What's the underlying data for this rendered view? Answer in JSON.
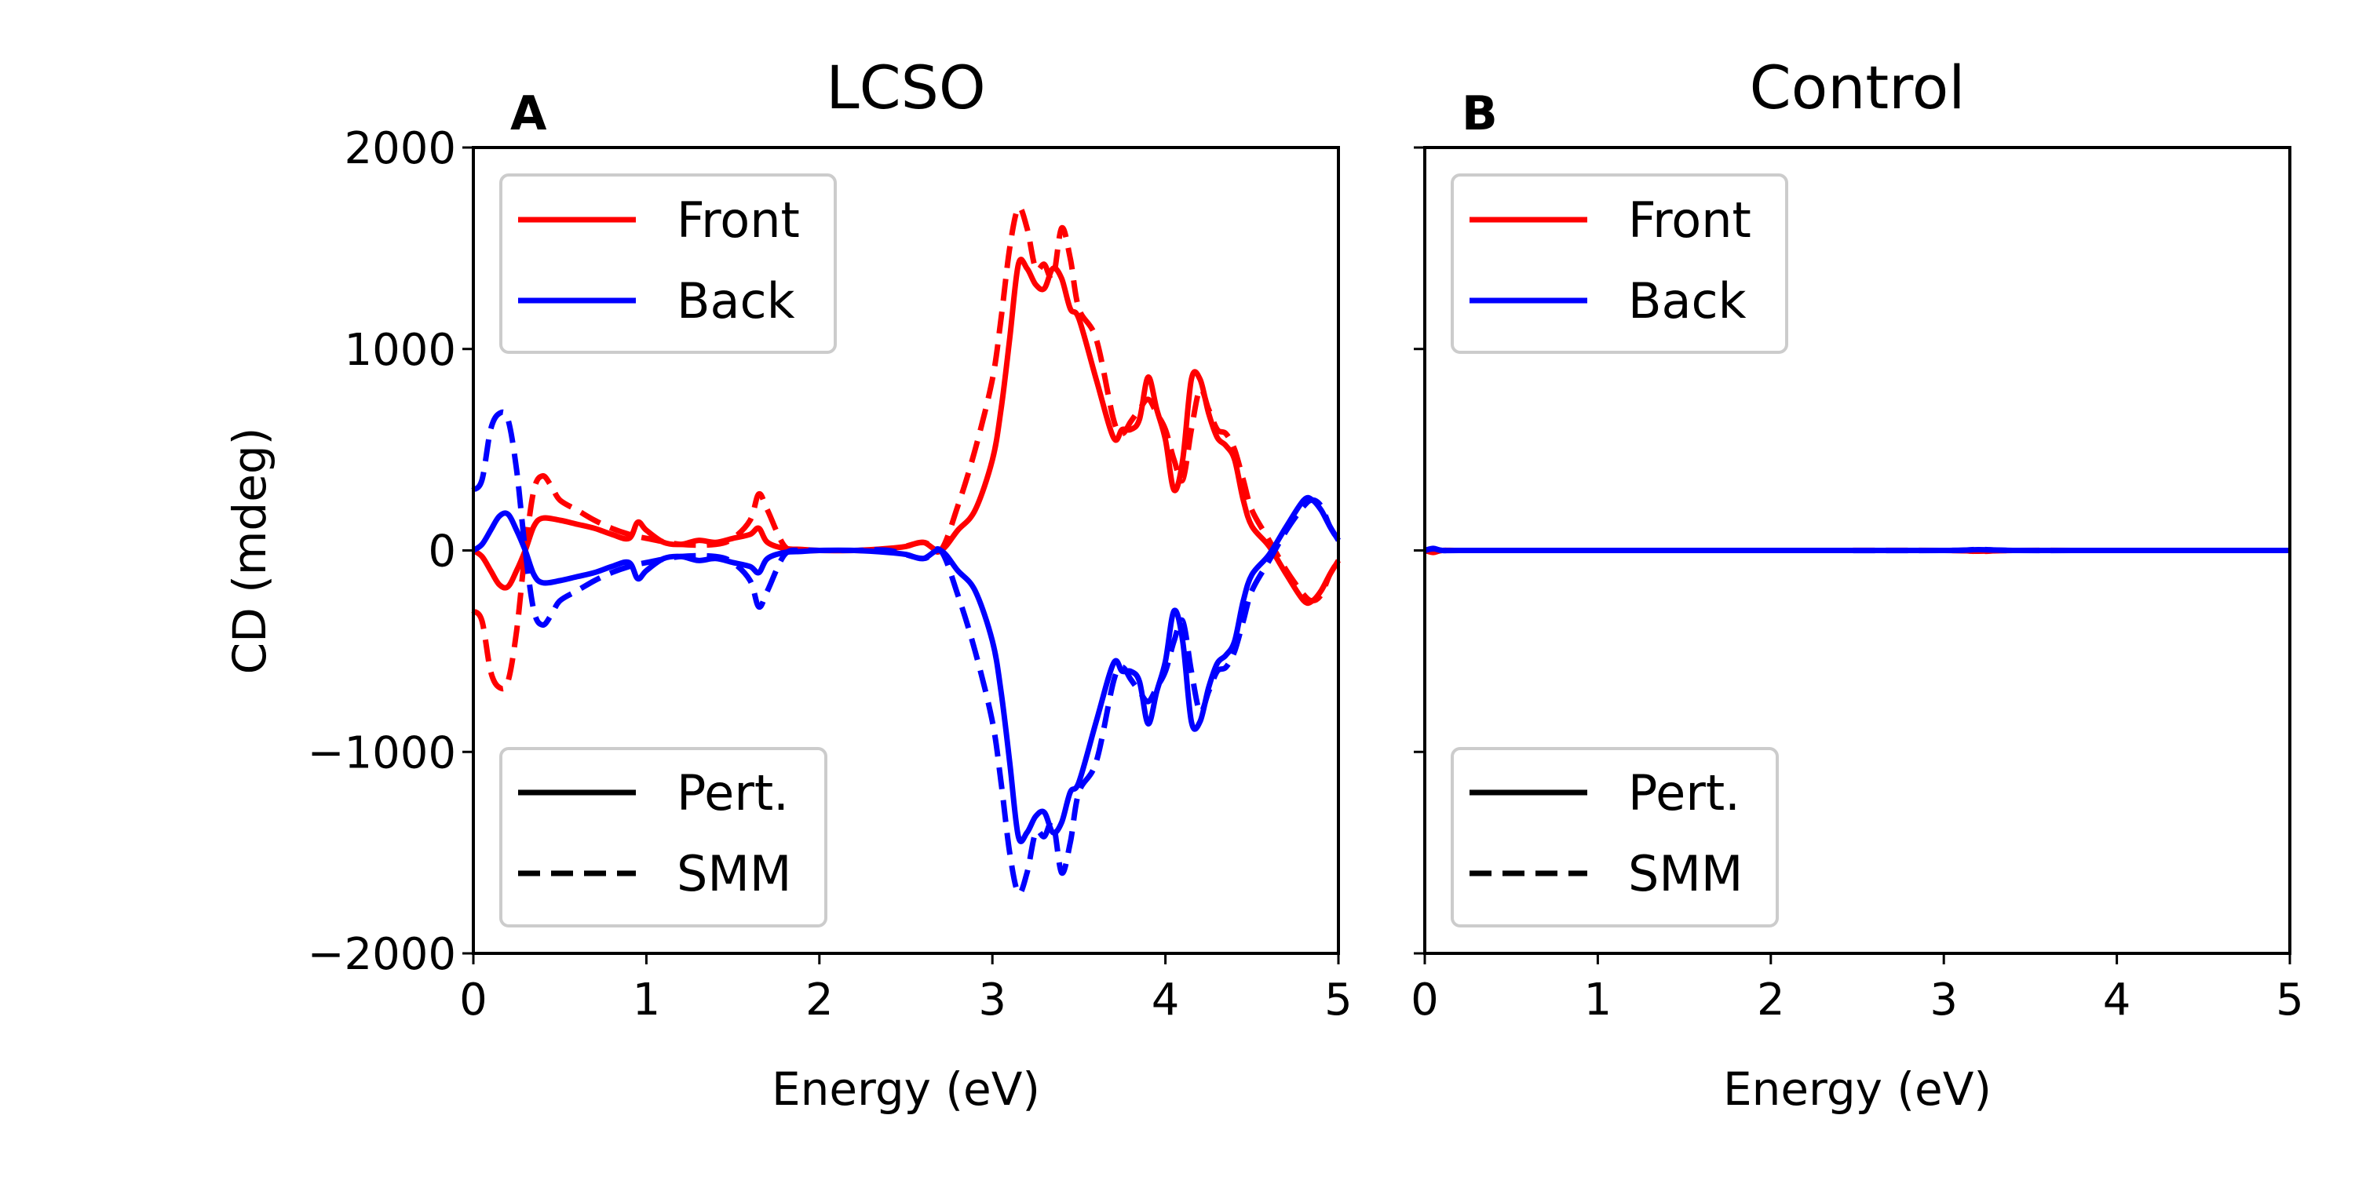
{
  "chart_data": [
    {
      "type": "line",
      "panel_label": "A",
      "title": "LCSO",
      "xlabel": "Energy (eV)",
      "ylabel": "CD (mdeg)",
      "xlim": [
        0,
        5
      ],
      "ylim": [
        -2000,
        2000
      ],
      "xticks": [
        "0",
        "1",
        "2",
        "3",
        "4",
        "5"
      ],
      "yticks": [
        "2000",
        "1000",
        "0",
        "−1000",
        "−2000"
      ],
      "grid": false,
      "legends": [
        {
          "placement": "top-left",
          "entries": [
            {
              "label": "Front",
              "color": "#ff0000",
              "style": "solid"
            },
            {
              "label": "Back",
              "color": "#0000ff",
              "style": "solid"
            }
          ]
        },
        {
          "placement": "bottom-left",
          "entries": [
            {
              "label": "Pert.",
              "color": "#000000",
              "style": "solid"
            },
            {
              "label": "SMM",
              "color": "#000000",
              "style": "dashed"
            }
          ]
        }
      ],
      "series": [
        {
          "name": "Front",
          "method": "Pert.",
          "color": "#ff0000",
          "dash": "solid",
          "x": [
            0,
            0.05,
            0.1,
            0.15,
            0.2,
            0.25,
            0.3,
            0.35,
            0.4,
            0.5,
            0.6,
            0.7,
            0.8,
            0.9,
            0.95,
            1.0,
            1.1,
            1.2,
            1.3,
            1.4,
            1.5,
            1.6,
            1.65,
            1.7,
            1.8,
            1.9,
            2.0,
            2.2,
            2.4,
            2.5,
            2.6,
            2.7,
            2.8,
            2.9,
            3.0,
            3.05,
            3.1,
            3.15,
            3.2,
            3.25,
            3.3,
            3.35,
            3.4,
            3.45,
            3.5,
            3.6,
            3.7,
            3.75,
            3.8,
            3.85,
            3.9,
            3.95,
            4.0,
            4.05,
            4.1,
            4.15,
            4.2,
            4.25,
            4.3,
            4.35,
            4.4,
            4.45,
            4.5,
            4.6,
            4.7,
            4.8,
            4.85,
            4.9,
            4.95,
            5.0
          ],
          "y": [
            0,
            -30,
            -100,
            -170,
            -180,
            -100,
            0,
            120,
            160,
            150,
            130,
            110,
            80,
            60,
            140,
            100,
            40,
            30,
            50,
            40,
            60,
            80,
            110,
            40,
            10,
            5,
            0,
            0,
            10,
            20,
            40,
            0,
            100,
            200,
            450,
            700,
            1050,
            1420,
            1400,
            1320,
            1300,
            1400,
            1350,
            1200,
            1150,
            850,
            560,
            600,
            600,
            650,
            860,
            700,
            550,
            300,
            450,
            850,
            850,
            680,
            560,
            520,
            450,
            250,
            120,
            20,
            -120,
            -250,
            -250,
            -200,
            -120,
            -50
          ]
        },
        {
          "name": "Front",
          "method": "SMM",
          "color": "#ff0000",
          "dash": "dashed",
          "x": [
            0,
            0.05,
            0.1,
            0.15,
            0.2,
            0.25,
            0.3,
            0.35,
            0.4,
            0.45,
            0.5,
            0.6,
            0.7,
            0.8,
            0.9,
            1.0,
            1.2,
            1.4,
            1.5,
            1.6,
            1.65,
            1.7,
            1.8,
            1.9,
            2.0,
            2.2,
            2.4,
            2.6,
            2.7,
            2.8,
            2.9,
            3.0,
            3.05,
            3.1,
            3.15,
            3.2,
            3.25,
            3.3,
            3.35,
            3.4,
            3.45,
            3.5,
            3.6,
            3.7,
            3.75,
            3.8,
            3.85,
            3.9,
            3.95,
            4.0,
            4.05,
            4.1,
            4.15,
            4.2,
            4.25,
            4.3,
            4.35,
            4.4,
            4.45,
            4.5,
            4.6,
            4.7,
            4.8,
            4.85,
            4.9,
            4.95,
            5.0
          ],
          "y": [
            -300,
            -350,
            -600,
            -680,
            -650,
            -400,
            0,
            300,
            370,
            320,
            250,
            200,
            150,
            110,
            80,
            60,
            30,
            30,
            60,
            150,
            280,
            200,
            20,
            0,
            0,
            0,
            0,
            40,
            0,
            220,
            500,
            850,
            1150,
            1500,
            1700,
            1600,
            1400,
            1420,
            1350,
            1600,
            1450,
            1200,
            1050,
            650,
            580,
            640,
            700,
            750,
            680,
            600,
            450,
            350,
            600,
            800,
            700,
            600,
            580,
            500,
            350,
            200,
            50,
            -100,
            -220,
            -250,
            -220,
            -120,
            -50
          ]
        },
        {
          "name": "Back",
          "method": "Pert.",
          "color": "#0000ff",
          "dash": "solid",
          "x": [
            0,
            0.05,
            0.1,
            0.15,
            0.2,
            0.25,
            0.3,
            0.35,
            0.4,
            0.5,
            0.6,
            0.7,
            0.8,
            0.9,
            0.95,
            1.0,
            1.1,
            1.2,
            1.3,
            1.4,
            1.5,
            1.6,
            1.65,
            1.7,
            1.8,
            1.9,
            2.0,
            2.2,
            2.4,
            2.5,
            2.6,
            2.7,
            2.8,
            2.9,
            3.0,
            3.05,
            3.1,
            3.15,
            3.2,
            3.25,
            3.3,
            3.35,
            3.4,
            3.45,
            3.5,
            3.6,
            3.7,
            3.75,
            3.8,
            3.85,
            3.9,
            3.95,
            4.0,
            4.05,
            4.1,
            4.15,
            4.2,
            4.25,
            4.3,
            4.35,
            4.4,
            4.45,
            4.5,
            4.6,
            4.7,
            4.8,
            4.85,
            4.9,
            4.95,
            5.0
          ],
          "y": [
            0,
            30,
            100,
            170,
            180,
            100,
            0,
            -120,
            -160,
            -150,
            -130,
            -110,
            -80,
            -60,
            -140,
            -100,
            -40,
            -30,
            -50,
            -40,
            -60,
            -80,
            -110,
            -40,
            -10,
            -5,
            0,
            0,
            -10,
            -20,
            -40,
            0,
            -100,
            -200,
            -450,
            -700,
            -1050,
            -1420,
            -1400,
            -1320,
            -1300,
            -1400,
            -1350,
            -1200,
            -1150,
            -850,
            -560,
            -600,
            -600,
            -650,
            -860,
            -700,
            -550,
            -300,
            -450,
            -850,
            -850,
            -680,
            -560,
            -520,
            -450,
            -250,
            -120,
            -20,
            120,
            250,
            250,
            200,
            120,
            50
          ]
        },
        {
          "name": "Back",
          "method": "SMM",
          "color": "#0000ff",
          "dash": "dashed",
          "x": [
            0,
            0.05,
            0.1,
            0.15,
            0.2,
            0.25,
            0.3,
            0.35,
            0.4,
            0.45,
            0.5,
            0.6,
            0.7,
            0.8,
            0.9,
            1.0,
            1.2,
            1.4,
            1.5,
            1.6,
            1.65,
            1.7,
            1.8,
            1.9,
            2.0,
            2.2,
            2.4,
            2.6,
            2.7,
            2.8,
            2.9,
            3.0,
            3.05,
            3.1,
            3.15,
            3.2,
            3.25,
            3.3,
            3.35,
            3.4,
            3.45,
            3.5,
            3.6,
            3.7,
            3.75,
            3.8,
            3.85,
            3.9,
            3.95,
            4.0,
            4.05,
            4.1,
            4.15,
            4.2,
            4.25,
            4.3,
            4.35,
            4.4,
            4.45,
            4.5,
            4.6,
            4.7,
            4.8,
            4.85,
            4.9,
            4.95,
            5.0
          ],
          "y": [
            300,
            350,
            600,
            680,
            650,
            400,
            0,
            -300,
            -370,
            -320,
            -250,
            -200,
            -150,
            -110,
            -80,
            -60,
            -30,
            -30,
            -60,
            -150,
            -280,
            -200,
            -20,
            0,
            0,
            0,
            0,
            -40,
            0,
            -220,
            -500,
            -850,
            -1150,
            -1500,
            -1700,
            -1600,
            -1400,
            -1420,
            -1350,
            -1600,
            -1450,
            -1200,
            -1050,
            -650,
            -580,
            -640,
            -700,
            -750,
            -680,
            -600,
            -450,
            -350,
            -600,
            -800,
            -700,
            -600,
            -580,
            -500,
            -350,
            -200,
            -50,
            100,
            220,
            250,
            220,
            120,
            50
          ]
        }
      ]
    },
    {
      "type": "line",
      "panel_label": "B",
      "title": "Control",
      "xlabel": "Energy (eV)",
      "ylabel": "",
      "xlim": [
        0,
        5
      ],
      "ylim": [
        -2000,
        2000
      ],
      "xticks": [
        "0",
        "1",
        "2",
        "3",
        "4",
        "5"
      ],
      "yticks": [],
      "grid": false,
      "legends": [
        {
          "placement": "top-left",
          "entries": [
            {
              "label": "Front",
              "color": "#ff0000",
              "style": "solid"
            },
            {
              "label": "Back",
              "color": "#0000ff",
              "style": "solid"
            }
          ]
        },
        {
          "placement": "bottom-left",
          "entries": [
            {
              "label": "Pert.",
              "color": "#000000",
              "style": "solid"
            },
            {
              "label": "SMM",
              "color": "#000000",
              "style": "dashed"
            }
          ]
        }
      ],
      "series": [
        {
          "name": "Front",
          "method": "Pert.",
          "color": "#ff0000",
          "dash": "solid",
          "x": [
            0,
            0.05,
            0.1,
            0.2,
            0.5,
            1,
            2,
            3,
            3.2,
            3.4,
            4,
            5
          ],
          "y": [
            0,
            -8,
            0,
            0,
            0,
            0,
            0,
            0,
            -4,
            0,
            0,
            0
          ]
        },
        {
          "name": "Front",
          "method": "SMM",
          "color": "#ff0000",
          "dash": "dashed",
          "x": [
            0,
            0.05,
            0.1,
            0.2,
            0.5,
            1,
            2,
            3,
            3.2,
            3.4,
            4,
            5
          ],
          "y": [
            0,
            -10,
            0,
            0,
            0,
            0,
            0,
            0,
            -5,
            0,
            0,
            0
          ]
        },
        {
          "name": "Back",
          "method": "Pert.",
          "color": "#0000ff",
          "dash": "solid",
          "x": [
            0,
            0.05,
            0.1,
            0.2,
            0.5,
            1,
            2,
            3,
            3.2,
            3.4,
            4,
            5
          ],
          "y": [
            0,
            10,
            0,
            0,
            0,
            0,
            0,
            0,
            4,
            0,
            0,
            0
          ]
        },
        {
          "name": "Back",
          "method": "SMM",
          "color": "#0000ff",
          "dash": "dashed",
          "x": [
            0,
            0.05,
            0.1,
            0.2,
            0.5,
            1,
            2,
            3,
            3.2,
            3.4,
            4,
            5
          ],
          "y": [
            0,
            8,
            0,
            0,
            0,
            0,
            0,
            0,
            5,
            0,
            0,
            0
          ]
        }
      ]
    }
  ]
}
